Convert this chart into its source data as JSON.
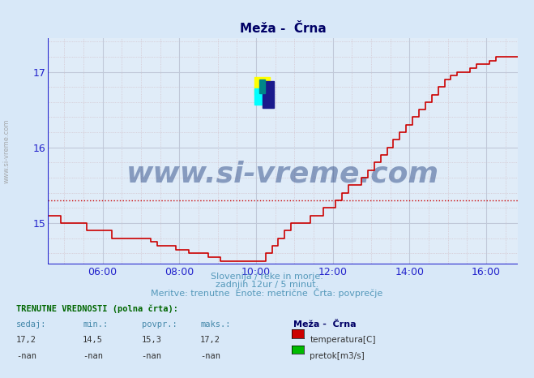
{
  "title": "Meža -  Črna",
  "bg_color": "#d8e8f8",
  "plot_bg_color": "#e0ecf8",
  "grid_color": "#c8d4e0",
  "axis_color": "#2222cc",
  "line_color": "#cc0000",
  "avg_line_color": "#cc0000",
  "avg_line_value": 15.3,
  "ylim_min": 14.45,
  "ylim_max": 17.45,
  "yticks": [
    15,
    16,
    17
  ],
  "xstart_hour": 4.58,
  "xend_hour": 16.83,
  "xtick_hours": [
    6,
    8,
    10,
    12,
    14,
    16
  ],
  "watermark": "www.si-vreme.com",
  "xlabel_texts": [
    "Slovenija / reke in morje.",
    "zadnjih 12ur / 5 minut.",
    "Meritve: trenutne  Enote: metrične  Črta: povprečje"
  ],
  "footer_label": "TRENUTNE VREDNOSTI (polna črta):",
  "footer_cols": [
    "sedaj:",
    "min.:",
    "povpr.:",
    "maks.:"
  ],
  "footer_temp_vals": [
    "17,2",
    "14,5",
    "15,3",
    "17,2"
  ],
  "footer_flow_vals": [
    "-nan",
    "-nan",
    "-nan",
    "-nan"
  ],
  "station_name": "Meža -  Črna",
  "legend_temp": "temperatura[C]",
  "legend_flow": "pretok[m3/s]",
  "temp_data": [
    [
      4.58,
      15.1
    ],
    [
      4.75,
      15.1
    ],
    [
      4.92,
      15.0
    ],
    [
      5.08,
      15.0
    ],
    [
      5.25,
      15.0
    ],
    [
      5.42,
      15.0
    ],
    [
      5.58,
      14.9
    ],
    [
      5.75,
      14.9
    ],
    [
      5.92,
      14.9
    ],
    [
      6.08,
      14.9
    ],
    [
      6.25,
      14.8
    ],
    [
      6.42,
      14.8
    ],
    [
      6.58,
      14.8
    ],
    [
      6.75,
      14.8
    ],
    [
      6.92,
      14.8
    ],
    [
      7.08,
      14.8
    ],
    [
      7.25,
      14.75
    ],
    [
      7.42,
      14.7
    ],
    [
      7.58,
      14.7
    ],
    [
      7.75,
      14.7
    ],
    [
      7.92,
      14.65
    ],
    [
      8.08,
      14.65
    ],
    [
      8.25,
      14.6
    ],
    [
      8.42,
      14.6
    ],
    [
      8.58,
      14.6
    ],
    [
      8.75,
      14.55
    ],
    [
      8.92,
      14.55
    ],
    [
      9.08,
      14.5
    ],
    [
      9.25,
      14.5
    ],
    [
      9.42,
      14.5
    ],
    [
      9.58,
      14.5
    ],
    [
      9.75,
      14.5
    ],
    [
      9.92,
      14.5
    ],
    [
      10.08,
      14.5
    ],
    [
      10.17,
      14.5
    ],
    [
      10.25,
      14.6
    ],
    [
      10.42,
      14.7
    ],
    [
      10.58,
      14.8
    ],
    [
      10.75,
      14.9
    ],
    [
      10.92,
      15.0
    ],
    [
      11.08,
      15.0
    ],
    [
      11.25,
      15.0
    ],
    [
      11.42,
      15.1
    ],
    [
      11.58,
      15.1
    ],
    [
      11.75,
      15.2
    ],
    [
      11.92,
      15.2
    ],
    [
      12.08,
      15.3
    ],
    [
      12.25,
      15.4
    ],
    [
      12.42,
      15.5
    ],
    [
      12.58,
      15.5
    ],
    [
      12.75,
      15.6
    ],
    [
      12.92,
      15.7
    ],
    [
      13.08,
      15.8
    ],
    [
      13.25,
      15.9
    ],
    [
      13.42,
      16.0
    ],
    [
      13.58,
      16.1
    ],
    [
      13.75,
      16.2
    ],
    [
      13.92,
      16.3
    ],
    [
      14.08,
      16.4
    ],
    [
      14.25,
      16.5
    ],
    [
      14.42,
      16.6
    ],
    [
      14.58,
      16.7
    ],
    [
      14.75,
      16.8
    ],
    [
      14.92,
      16.9
    ],
    [
      15.08,
      16.95
    ],
    [
      15.25,
      17.0
    ],
    [
      15.42,
      17.0
    ],
    [
      15.58,
      17.05
    ],
    [
      15.75,
      17.1
    ],
    [
      15.92,
      17.1
    ],
    [
      16.08,
      17.15
    ],
    [
      16.25,
      17.2
    ],
    [
      16.42,
      17.2
    ],
    [
      16.58,
      17.2
    ],
    [
      16.75,
      17.2
    ],
    [
      16.83,
      17.2
    ]
  ]
}
